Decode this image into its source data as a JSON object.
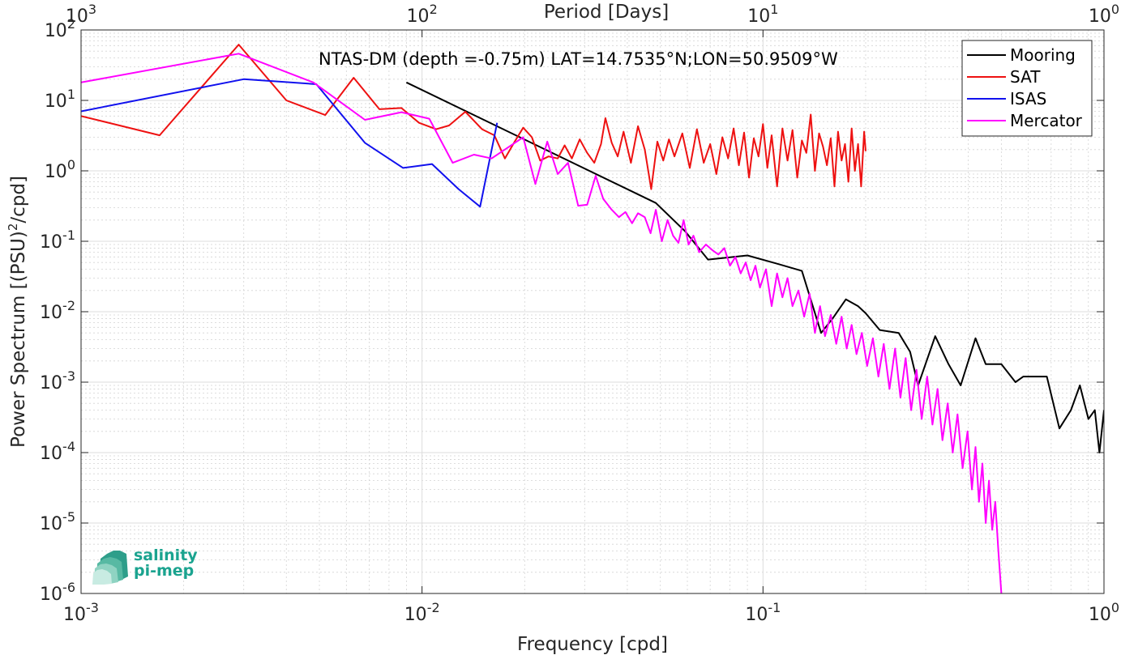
{
  "chart_data": {
    "type": "line",
    "title": "NTAS-DM (depth =-0.75m) LAT=14.7535°N;LON=50.9509°W",
    "xlabel": "Frequency [cpd]",
    "ylabel": "Power Spectrum [(PSU)²/cpd]",
    "top_xlabel": "Period [Days]",
    "x_scale": "log",
    "y_scale": "log",
    "xlim": [
      0.001,
      1
    ],
    "ylim": [
      1e-06,
      100
    ],
    "grid": true,
    "legend_position": "top-right",
    "x_ticks": [
      {
        "value": 0.001,
        "base": "10",
        "exp": "-3"
      },
      {
        "value": 0.01,
        "base": "10",
        "exp": "-2"
      },
      {
        "value": 0.1,
        "base": "10",
        "exp": "-1"
      },
      {
        "value": 1,
        "base": "10",
        "exp": "0"
      }
    ],
    "top_ticks": [
      {
        "value": 0.001,
        "base": "10",
        "exp": "3"
      },
      {
        "value": 0.01,
        "base": "10",
        "exp": "2"
      },
      {
        "value": 0.1,
        "base": "10",
        "exp": "1"
      },
      {
        "value": 1,
        "base": "10",
        "exp": "0"
      }
    ],
    "y_ticks": [
      {
        "value": 100,
        "base": "10",
        "exp": "2"
      },
      {
        "value": 10,
        "base": "10",
        "exp": "1"
      },
      {
        "value": 1,
        "base": "10",
        "exp": "0"
      },
      {
        "value": 0.1,
        "base": "10",
        "exp": "-1"
      },
      {
        "value": 0.01,
        "base": "10",
        "exp": "-2"
      },
      {
        "value": 0.001,
        "base": "10",
        "exp": "-3"
      },
      {
        "value": 0.0001,
        "base": "10",
        "exp": "-4"
      },
      {
        "value": 1e-05,
        "base": "10",
        "exp": "-5"
      },
      {
        "value": 1e-06,
        "base": "10",
        "exp": "-6"
      }
    ],
    "series": [
      {
        "name": "Mooring",
        "color": "#000000",
        "x": [
          0.009,
          0.0485,
          0.059,
          0.069,
          0.09,
          0.11,
          0.13,
          0.148,
          0.16,
          0.175,
          0.19,
          0.2,
          0.22,
          0.25,
          0.27,
          0.285,
          0.32,
          0.35,
          0.38,
          0.42,
          0.45,
          0.5,
          0.55,
          0.58,
          0.62,
          0.68,
          0.74,
          0.8,
          0.85,
          0.9,
          0.94,
          0.97,
          1.0
        ],
        "y": [
          18,
          0.35,
          0.14,
          0.055,
          0.063,
          0.048,
          0.038,
          0.005,
          0.008,
          0.015,
          0.012,
          0.0095,
          0.0055,
          0.005,
          0.0027,
          0.0009,
          0.0045,
          0.0018,
          0.0009,
          0.0042,
          0.0018,
          0.0018,
          0.001,
          0.0012,
          0.0012,
          0.0012,
          0.00022,
          0.0004,
          0.0009,
          0.0003,
          0.0004,
          0.0001,
          0.0004
        ]
      },
      {
        "name": "SAT",
        "color": "#ee1111",
        "x": [
          0.001,
          0.0017,
          0.0029,
          0.004,
          0.0052,
          0.0063,
          0.0075,
          0.0087,
          0.0098,
          0.011,
          0.012,
          0.0134,
          0.015,
          0.0163,
          0.0175,
          0.0187,
          0.0198,
          0.021,
          0.0222,
          0.0235,
          0.025,
          0.0262,
          0.0275,
          0.029,
          0.0305,
          0.032,
          0.0335,
          0.0345,
          0.036,
          0.0375,
          0.039,
          0.041,
          0.043,
          0.045,
          0.047,
          0.049,
          0.051,
          0.053,
          0.055,
          0.058,
          0.061,
          0.064,
          0.067,
          0.07,
          0.073,
          0.076,
          0.079,
          0.082,
          0.085,
          0.088,
          0.091,
          0.094,
          0.097,
          0.1,
          0.103,
          0.106,
          0.11,
          0.114,
          0.118,
          0.122,
          0.126,
          0.13,
          0.134,
          0.138,
          0.142,
          0.146,
          0.15,
          0.154,
          0.158,
          0.162,
          0.166,
          0.17,
          0.174,
          0.178,
          0.182,
          0.186,
          0.19,
          0.194,
          0.198,
          0.2
        ],
        "y": [
          6,
          3.2,
          62,
          10,
          6.2,
          21,
          7.5,
          7.8,
          4.8,
          3.9,
          4.4,
          6.9,
          3.9,
          3.2,
          1.5,
          2.6,
          4.1,
          3.0,
          1.4,
          1.6,
          1.5,
          2.3,
          1.5,
          2.8,
          1.8,
          1.3,
          2.4,
          5.6,
          2.5,
          1.6,
          3.6,
          1.3,
          4.3,
          2.0,
          0.55,
          2.6,
          1.4,
          2.8,
          1.6,
          3.4,
          1.1,
          3.9,
          1.3,
          2.4,
          0.9,
          3.0,
          1.5,
          4.0,
          1.2,
          3.5,
          0.8,
          2.9,
          1.6,
          4.6,
          1.1,
          3.2,
          0.6,
          4.0,
          1.4,
          3.8,
          0.8,
          2.7,
          1.8,
          6.3,
          1.0,
          3.4,
          2.2,
          1.2,
          2.9,
          0.6,
          3.6,
          1.4,
          2.4,
          0.7,
          4.0,
          1.0,
          2.4,
          0.6,
          3.6,
          1.9
        ]
      },
      {
        "name": "ISAS",
        "color": "#1111ee",
        "x": [
          0.001,
          0.003,
          0.0049,
          0.0068,
          0.0088,
          0.0107,
          0.0128,
          0.0148,
          0.0166
        ],
        "y": [
          7,
          20,
          17,
          2.5,
          1.1,
          1.25,
          0.55,
          0.31,
          4.8
        ]
      },
      {
        "name": "Mercator",
        "color": "#ff00ff",
        "x": [
          0.001,
          0.0029,
          0.0048,
          0.0068,
          0.0087,
          0.0105,
          0.0123,
          0.0142,
          0.016,
          0.018,
          0.0198,
          0.0215,
          0.0233,
          0.025,
          0.0268,
          0.0287,
          0.0305,
          0.0323,
          0.034,
          0.036,
          0.0378,
          0.0395,
          0.0413,
          0.043,
          0.045,
          0.0468,
          0.0485,
          0.0505,
          0.0525,
          0.0545,
          0.0565,
          0.0585,
          0.0605,
          0.0625,
          0.065,
          0.068,
          0.071,
          0.074,
          0.077,
          0.08,
          0.083,
          0.086,
          0.089,
          0.092,
          0.095,
          0.098,
          0.102,
          0.106,
          0.11,
          0.114,
          0.118,
          0.122,
          0.127,
          0.132,
          0.137,
          0.142,
          0.147,
          0.152,
          0.158,
          0.164,
          0.17,
          0.176,
          0.182,
          0.188,
          0.195,
          0.202,
          0.21,
          0.218,
          0.226,
          0.235,
          0.244,
          0.253,
          0.262,
          0.272,
          0.282,
          0.292,
          0.303,
          0.314,
          0.325,
          0.336,
          0.348,
          0.36,
          0.372,
          0.385,
          0.398,
          0.41,
          0.42,
          0.43,
          0.44,
          0.45,
          0.46,
          0.47,
          0.48,
          0.49,
          0.5
        ],
        "y": [
          18,
          46,
          18,
          5.3,
          6.8,
          5.5,
          1.3,
          1.7,
          1.5,
          2.2,
          3.0,
          0.65,
          2.6,
          0.9,
          1.3,
          0.32,
          0.33,
          0.85,
          0.4,
          0.28,
          0.22,
          0.26,
          0.18,
          0.25,
          0.22,
          0.13,
          0.28,
          0.1,
          0.2,
          0.12,
          0.095,
          0.2,
          0.09,
          0.12,
          0.07,
          0.09,
          0.075,
          0.065,
          0.08,
          0.045,
          0.06,
          0.035,
          0.05,
          0.028,
          0.045,
          0.022,
          0.04,
          0.012,
          0.035,
          0.016,
          0.03,
          0.012,
          0.02,
          0.0085,
          0.018,
          0.005,
          0.012,
          0.0045,
          0.009,
          0.0035,
          0.0085,
          0.003,
          0.0065,
          0.0025,
          0.005,
          0.0017,
          0.0042,
          0.0012,
          0.0035,
          0.0008,
          0.003,
          0.0006,
          0.0022,
          0.0004,
          0.0015,
          0.0003,
          0.0012,
          0.00025,
          0.0008,
          0.00015,
          0.0005,
          0.0001,
          0.00035,
          6e-05,
          0.0002,
          3e-05,
          0.00012,
          2e-05,
          7e-05,
          1e-05,
          4e-05,
          8e-06,
          2e-05,
          4e-06,
          1e-06
        ]
      }
    ]
  },
  "logo": {
    "line1": "salinity",
    "line2": "pi-mep",
    "color": "#1aa38f"
  }
}
